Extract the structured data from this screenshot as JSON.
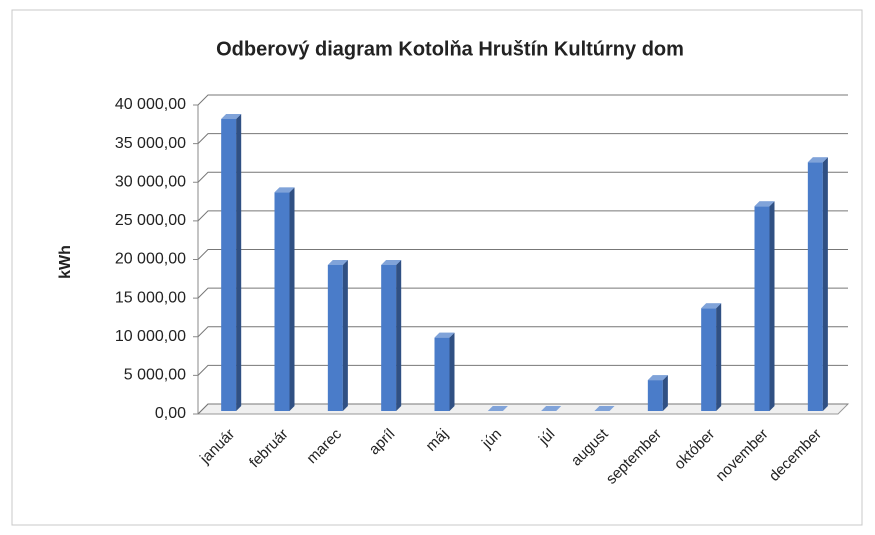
{
  "chart_data": {
    "type": "bar",
    "title": "Odberový diagram Kotolňa Hruštín Kultúrny dom",
    "y_label": "kWh",
    "categories": [
      "január",
      "február",
      "marec",
      "apríl",
      "máj",
      "jún",
      "júl",
      "august",
      "september",
      "október",
      "november",
      "december"
    ],
    "values": [
      37800,
      28300,
      18900,
      18900,
      9500,
      0,
      0,
      0,
      4000,
      13300,
      26500,
      32200
    ],
    "color": "#4a7cc9",
    "ylim": [
      0,
      40000
    ],
    "yticks": [
      {
        "value": 0,
        "label": "0,00"
      },
      {
        "value": 5000,
        "label": "5 000,00"
      },
      {
        "value": 10000,
        "label": "10 000,00"
      },
      {
        "value": 15000,
        "label": "15 000,00"
      },
      {
        "value": 20000,
        "label": "20 000,00"
      },
      {
        "value": 25000,
        "label": "25 000,00"
      },
      {
        "value": 30000,
        "label": "30 000,00"
      },
      {
        "value": 35000,
        "label": "35 000,00"
      },
      {
        "value": 40000,
        "label": "40 000,00"
      }
    ],
    "grid": true
  }
}
